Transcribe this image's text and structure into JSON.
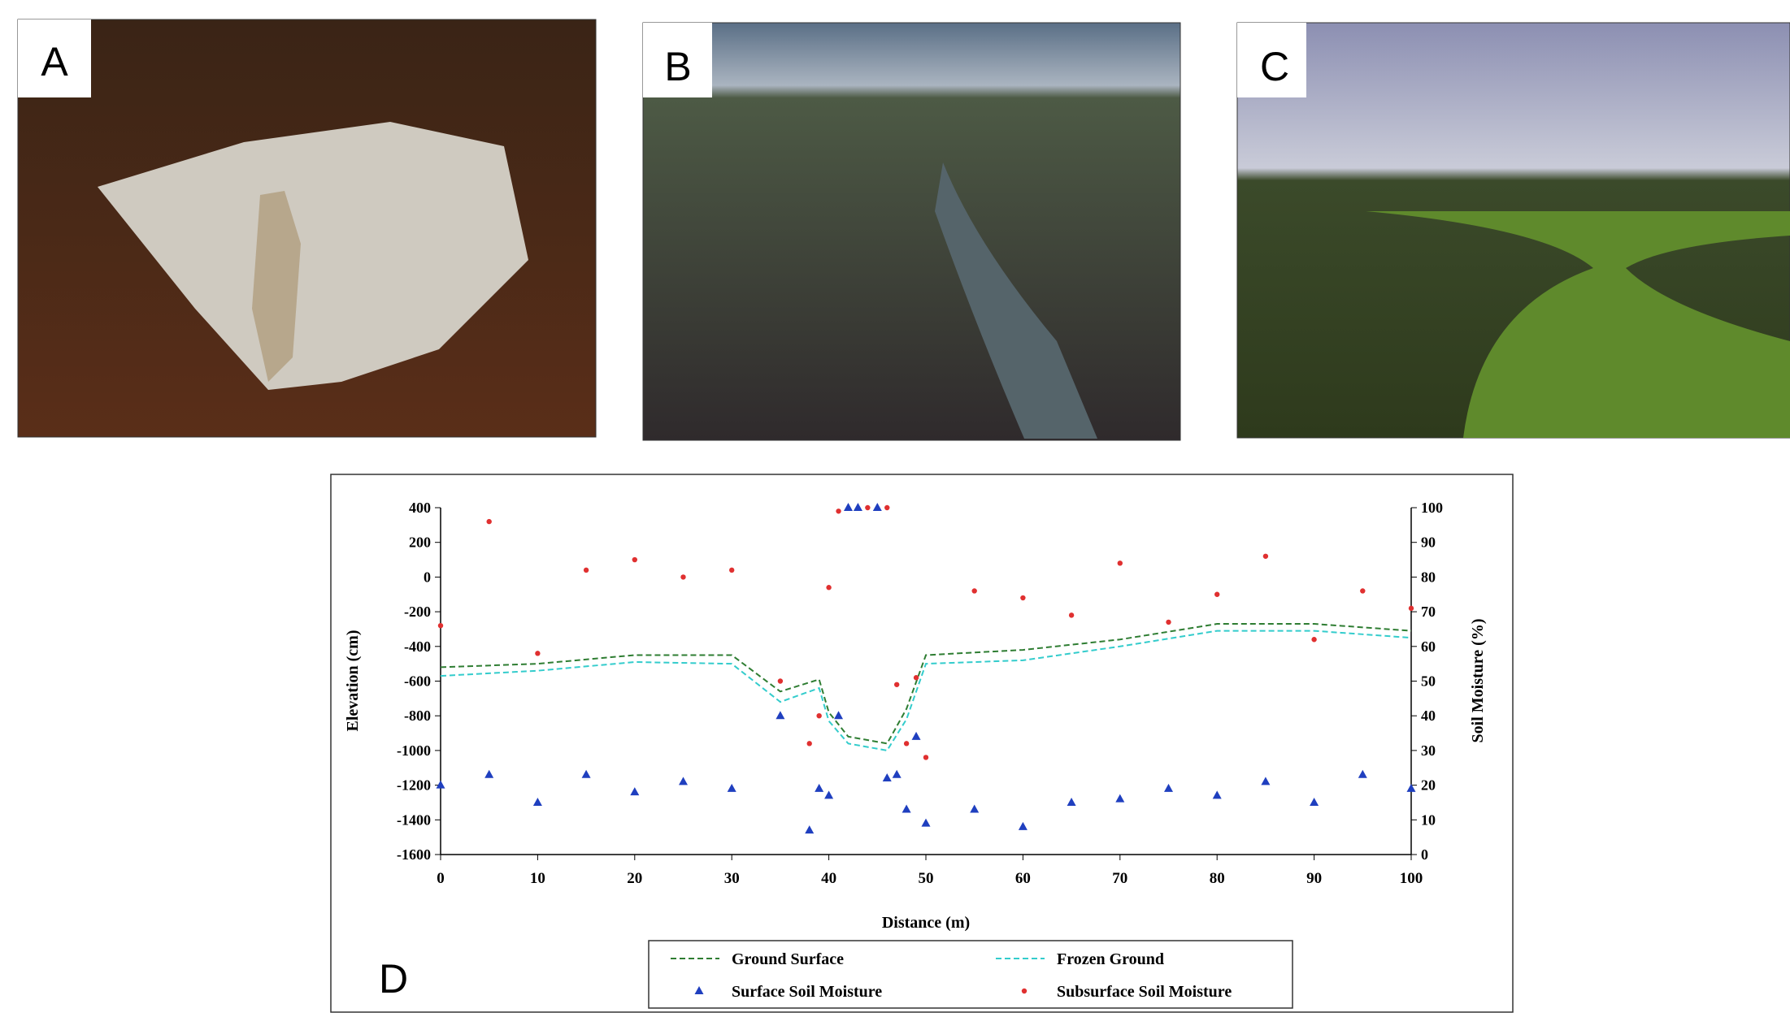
{
  "panels": [
    {
      "label": "A"
    },
    {
      "label": "B"
    },
    {
      "label": "C"
    }
  ],
  "chart_data": {
    "type": "line",
    "panel_label": "D",
    "x_label": "Distance (m)",
    "y_label": "Elevation (cm)",
    "y2_label": "Soil Moisture (%)",
    "xlim": [
      0,
      100
    ],
    "xticks": [
      0,
      10,
      20,
      30,
      40,
      50,
      60,
      70,
      80,
      90,
      100
    ],
    "ylim": [
      -1600,
      400
    ],
    "yticks": [
      -1600,
      -1400,
      -1200,
      -1000,
      -800,
      -600,
      -400,
      -200,
      0,
      200,
      400
    ],
    "y2lim": [
      0,
      100
    ],
    "y2ticks": [
      0,
      10,
      20,
      30,
      40,
      50,
      60,
      70,
      80,
      90,
      100
    ],
    "series": [
      {
        "name": "Ground Surface",
        "type": "line",
        "color": "#2e7d32",
        "x": [
          0,
          10,
          20,
          30,
          35,
          39,
          40,
          42,
          46,
          48,
          50,
          60,
          70,
          80,
          90,
          100
        ],
        "values": [
          -520,
          -500,
          -450,
          -450,
          -660,
          -590,
          -780,
          -920,
          -960,
          -760,
          -450,
          -420,
          -360,
          -270,
          -270,
          -310
        ]
      },
      {
        "name": "Frozen Ground",
        "type": "line",
        "color": "#33cccc",
        "x": [
          0,
          10,
          20,
          30,
          35,
          39,
          40,
          42,
          46,
          48,
          50,
          60,
          70,
          80,
          90,
          100
        ],
        "values": [
          -570,
          -540,
          -490,
          -500,
          -720,
          -640,
          -830,
          -960,
          -1000,
          -820,
          -500,
          -480,
          -400,
          -310,
          -310,
          -350
        ]
      },
      {
        "name": "Surface Soil Moisture",
        "type": "scatter",
        "marker": "triangle",
        "axis": "y2",
        "color": "#1f3fbf",
        "x": [
          0,
          5,
          10,
          15,
          20,
          25,
          30,
          35,
          38,
          39,
          40,
          41,
          42,
          43,
          45,
          46,
          47,
          48,
          49,
          50,
          55,
          60,
          65,
          70,
          75,
          80,
          85,
          90,
          95,
          100
        ],
        "values": [
          20,
          23,
          15,
          23,
          18,
          21,
          19,
          40,
          7,
          19,
          17,
          40,
          100,
          100,
          100,
          22,
          23,
          13,
          34,
          9,
          13,
          8,
          15,
          16,
          19,
          17,
          21,
          15,
          23,
          19
        ]
      },
      {
        "name": "Subsurface Soil Moisture",
        "type": "scatter",
        "marker": "dot",
        "axis": "y2",
        "color": "#e03030",
        "x": [
          0,
          5,
          10,
          15,
          20,
          25,
          30,
          35,
          38,
          39,
          40,
          41,
          44,
          46,
          47,
          48,
          49,
          50,
          55,
          60,
          65,
          70,
          75,
          80,
          85,
          90,
          95,
          100
        ],
        "values": [
          66,
          96,
          58,
          82,
          85,
          80,
          82,
          50,
          32,
          40,
          77,
          99,
          100,
          100,
          49,
          32,
          51,
          28,
          76,
          74,
          69,
          84,
          67,
          75,
          86,
          62,
          76,
          71
        ]
      }
    ]
  }
}
